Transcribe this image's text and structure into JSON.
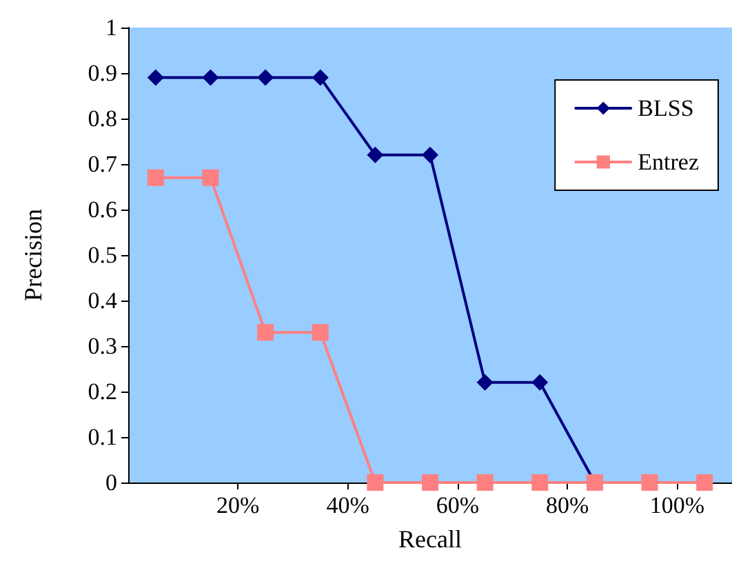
{
  "chart_data": {
    "type": "line",
    "xlabel": "Recall",
    "ylabel": "Precision",
    "x": [
      5,
      15,
      25,
      35,
      45,
      55,
      65,
      75,
      85,
      95,
      105
    ],
    "series": [
      {
        "name": "BLSS",
        "color": "#000080",
        "marker": "diamond",
        "values": [
          0.89,
          0.89,
          0.89,
          0.89,
          0.72,
          0.72,
          0.22,
          0.22,
          0,
          0,
          0
        ]
      },
      {
        "name": "Entrez",
        "color": "#ff8080",
        "marker": "square",
        "values": [
          0.67,
          0.67,
          0.33,
          0.33,
          0,
          0,
          0,
          0,
          0,
          0,
          0
        ]
      }
    ],
    "xlim": [
      0,
      110
    ],
    "xticks": [
      {
        "value": 20,
        "label": "20%"
      },
      {
        "value": 40,
        "label": "40%"
      },
      {
        "value": 60,
        "label": "60%"
      },
      {
        "value": 80,
        "label": "80%"
      },
      {
        "value": 100,
        "label": "100%"
      }
    ],
    "ylim": [
      0,
      1
    ],
    "yticks": [
      0,
      0.1,
      0.2,
      0.3,
      0.4,
      0.5,
      0.6,
      0.7,
      0.8,
      0.9,
      1
    ],
    "grid": false,
    "legend": "top right",
    "line_style": "solid"
  }
}
